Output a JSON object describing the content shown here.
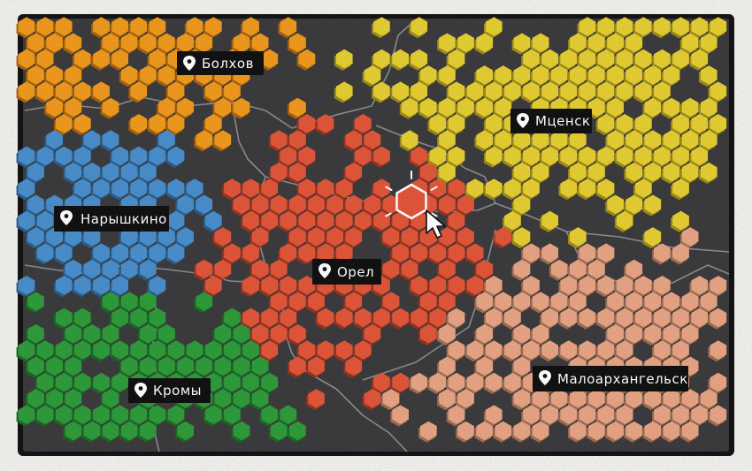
{
  "colors": {
    "map_background": "#3c3c3e",
    "frame": "#151515",
    "paper": "#f2f1ee",
    "border_lines": "#8d8d8d",
    "label_background": "#121212",
    "label_text": "#ffffff"
  },
  "regions": [
    {
      "key": "bolkhov",
      "name": "Болхов",
      "color": "#f09a1e",
      "shadow": "#a86410"
    },
    {
      "key": "mtsensk",
      "name": "Мценск",
      "color": "#e6cf33",
      "shadow": "#9d8c1c"
    },
    {
      "key": "naryshkino",
      "name": "Нарышкино",
      "color": "#4a8fcd",
      "shadow": "#2c5f8c"
    },
    {
      "key": "orel",
      "name": "Орел",
      "color": "#e2573a",
      "shadow": "#963522",
      "selected": true
    },
    {
      "key": "kromy",
      "name": "Кромы",
      "color": "#2f9c3b",
      "shadow": "#1d6a26"
    },
    {
      "key": "maloarkhangelsk",
      "name": "Малоархангельск",
      "color": "#e8a585",
      "shadow": "#a06e55"
    }
  ],
  "icons": {
    "location": "location-pin-icon",
    "cursor": "mouse-pointer-icon"
  }
}
